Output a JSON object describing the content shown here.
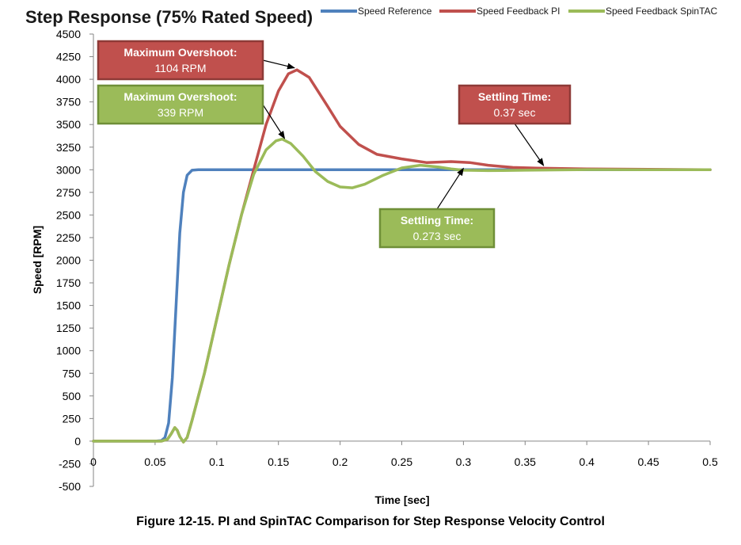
{
  "caption": "Figure 12-15. PI and SpinTAC Comparison for Step Response Velocity Control",
  "chart_data": {
    "type": "line",
    "title": "Step Response (75% Rated Speed)",
    "xlabel": "Time [sec]",
    "ylabel": "Speed [RPM]",
    "xlim": [
      0,
      0.5
    ],
    "ylim": [
      -500,
      4500
    ],
    "xticks": [
      0,
      0.05,
      0.1,
      0.15,
      0.2,
      0.25,
      0.3,
      0.35,
      0.4,
      0.45,
      0.5
    ],
    "xtick_labels": [
      "0",
      "0.05",
      "0.1",
      "0.15",
      "0.2",
      "0.25",
      "0.3",
      "0.35",
      "0.4",
      "0.45",
      "0.5"
    ],
    "yticks": [
      -500,
      -250,
      0,
      250,
      500,
      750,
      1000,
      1250,
      1500,
      1750,
      2000,
      2250,
      2500,
      2750,
      3000,
      3250,
      3500,
      3750,
      4000,
      4250,
      4500
    ],
    "ytick_labels": [
      "-500",
      "-250",
      "0",
      "250",
      "500",
      "750",
      "1000",
      "1250",
      "1500",
      "1750",
      "2000",
      "2250",
      "2500",
      "2750",
      "3000",
      "3250",
      "3500",
      "3750",
      "4000",
      "4250",
      "4500"
    ],
    "grid": false,
    "legend_position": "top-right",
    "series": [
      {
        "name": "Speed Reference",
        "color": "#4f81bd",
        "points": [
          [
            0,
            0
          ],
          [
            0.05,
            0
          ],
          [
            0.055,
            5
          ],
          [
            0.058,
            40
          ],
          [
            0.061,
            200
          ],
          [
            0.064,
            700
          ],
          [
            0.067,
            1500
          ],
          [
            0.07,
            2300
          ],
          [
            0.073,
            2750
          ],
          [
            0.076,
            2940
          ],
          [
            0.08,
            2995
          ],
          [
            0.085,
            3000
          ],
          [
            0.5,
            3000
          ]
        ]
      },
      {
        "name": "Speed Feedback PI",
        "color": "#c0504d",
        "points": [
          [
            0,
            0
          ],
          [
            0.055,
            0
          ],
          [
            0.06,
            20
          ],
          [
            0.063,
            80
          ],
          [
            0.066,
            150
          ],
          [
            0.068,
            120
          ],
          [
            0.07,
            50
          ],
          [
            0.073,
            -10
          ],
          [
            0.076,
            40
          ],
          [
            0.08,
            230
          ],
          [
            0.09,
            750
          ],
          [
            0.1,
            1350
          ],
          [
            0.11,
            1950
          ],
          [
            0.12,
            2500
          ],
          [
            0.13,
            3000
          ],
          [
            0.14,
            3500
          ],
          [
            0.15,
            3870
          ],
          [
            0.158,
            4060
          ],
          [
            0.165,
            4104
          ],
          [
            0.175,
            4020
          ],
          [
            0.19,
            3700
          ],
          [
            0.2,
            3480
          ],
          [
            0.215,
            3280
          ],
          [
            0.23,
            3170
          ],
          [
            0.25,
            3120
          ],
          [
            0.27,
            3080
          ],
          [
            0.29,
            3090
          ],
          [
            0.305,
            3080
          ],
          [
            0.32,
            3050
          ],
          [
            0.34,
            3025
          ],
          [
            0.36,
            3018
          ],
          [
            0.4,
            3010
          ],
          [
            0.45,
            3005
          ],
          [
            0.5,
            3000
          ]
        ]
      },
      {
        "name": "Speed Feedback SpinTAC",
        "color": "#9bbb59",
        "points": [
          [
            0,
            0
          ],
          [
            0.055,
            0
          ],
          [
            0.06,
            20
          ],
          [
            0.063,
            80
          ],
          [
            0.066,
            150
          ],
          [
            0.068,
            120
          ],
          [
            0.07,
            50
          ],
          [
            0.073,
            -10
          ],
          [
            0.076,
            40
          ],
          [
            0.08,
            230
          ],
          [
            0.09,
            750
          ],
          [
            0.1,
            1350
          ],
          [
            0.11,
            1950
          ],
          [
            0.12,
            2500
          ],
          [
            0.13,
            2950
          ],
          [
            0.14,
            3220
          ],
          [
            0.148,
            3320
          ],
          [
            0.153,
            3339
          ],
          [
            0.16,
            3290
          ],
          [
            0.17,
            3150
          ],
          [
            0.18,
            2980
          ],
          [
            0.19,
            2870
          ],
          [
            0.2,
            2810
          ],
          [
            0.21,
            2800
          ],
          [
            0.22,
            2840
          ],
          [
            0.235,
            2940
          ],
          [
            0.25,
            3020
          ],
          [
            0.265,
            3050
          ],
          [
            0.28,
            3030
          ],
          [
            0.29,
            3010
          ],
          [
            0.3,
            2995
          ],
          [
            0.32,
            2990
          ],
          [
            0.35,
            2995
          ],
          [
            0.4,
            3002
          ],
          [
            0.45,
            3000
          ],
          [
            0.5,
            3000
          ]
        ]
      }
    ],
    "annotations": [
      {
        "line1": "Maximum Overshoot:",
        "line2": "1104 RPM",
        "color": "#c0504d",
        "series": "Speed Feedback PI",
        "target": [
          0.163,
          4100
        ]
      },
      {
        "line1": "Maximum Overshoot:",
        "line2": "339 RPM",
        "color": "#9bbb59",
        "series": "Speed Feedback SpinTAC",
        "target": [
          0.155,
          3320
        ]
      },
      {
        "line1": "Settling Time:",
        "line2": "0.37 sec",
        "color": "#c0504d",
        "series": "Speed Feedback PI",
        "target": [
          0.365,
          3020
        ]
      },
      {
        "line1": "Settling Time:",
        "line2": "0.273 sec",
        "color": "#9bbb59",
        "series": "Speed Feedback SpinTAC",
        "target": [
          0.3,
          2990
        ]
      }
    ]
  }
}
